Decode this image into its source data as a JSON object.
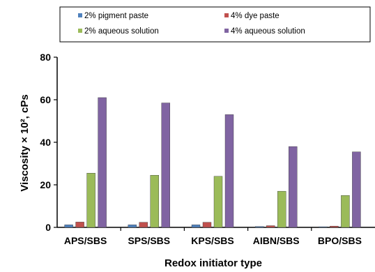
{
  "chart_data": {
    "type": "bar",
    "xlabel": "Redox initiator type",
    "ylabel": "Viscosity × 10², cPs",
    "ylim": [
      0,
      80
    ],
    "yticks": [
      0,
      20,
      40,
      60,
      80
    ],
    "categories": [
      "APS/SBS",
      "SPS/SBS",
      "KPS/SBS",
      "AIBN/SBS",
      "BPO/SBS"
    ],
    "series": [
      {
        "name": "2% pigment paste",
        "color": "#4f81bd",
        "values": [
          1.2,
          1.2,
          1.2,
          0.4,
          0.3
        ]
      },
      {
        "name": "4%  dye paste",
        "color": "#c0504d",
        "values": [
          2.5,
          2.4,
          2.4,
          0.8,
          0.6
        ]
      },
      {
        "name": "2% aqueous solution",
        "color": "#9bbb59",
        "values": [
          25.5,
          24.5,
          24,
          17,
          15
        ]
      },
      {
        "name": "4% aqueous solution",
        "color": "#8064a2",
        "values": [
          61,
          58.5,
          53,
          38,
          35.5
        ]
      }
    ],
    "legend_position": "top",
    "grid": false
  }
}
